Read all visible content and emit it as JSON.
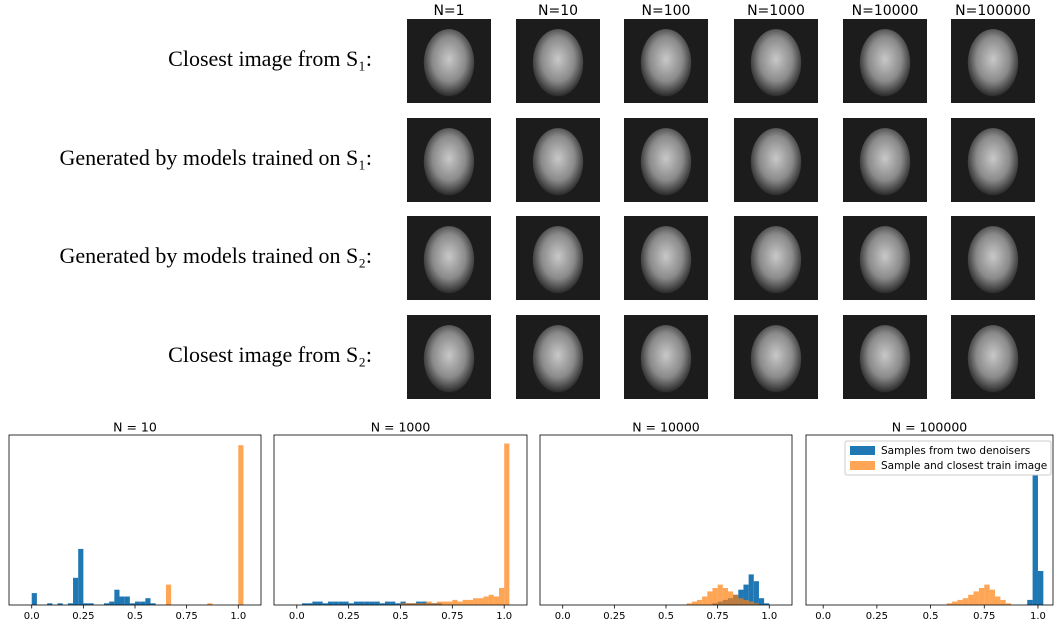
{
  "figure": {
    "columns": [
      "N=1",
      "N=10",
      "N=100",
      "N=1000",
      "N=10000",
      "N=100000"
    ],
    "rows": [
      "Closest image from S₁:",
      "Generated by models trained on S₁:",
      "Generated by models trained on S₂:",
      "Closest image from S₂:"
    ]
  },
  "chart_data": [
    {
      "type": "histogram",
      "title": "N = 10",
      "bins": [
        0,
        0.025,
        0.05,
        0.075,
        0.1,
        0.125,
        0.15,
        0.175,
        0.2,
        0.225,
        0.25,
        0.275,
        0.3,
        0.325,
        0.35,
        0.375,
        0.4,
        0.425,
        0.45,
        0.475,
        0.5,
        0.525,
        0.55,
        0.575,
        0.6,
        0.625,
        0.65,
        0.675,
        0.7,
        0.725,
        0.75,
        0.775,
        0.8,
        0.825,
        0.85,
        0.875,
        0.9,
        0.925,
        0.95,
        0.975,
        1,
        1.025
      ],
      "series": [
        {
          "color": "#1f77b4",
          "values": [
            7,
            0,
            0,
            1,
            0,
            1,
            0,
            1,
            16,
            33,
            1,
            1,
            0,
            0,
            1,
            2,
            9,
            5,
            5,
            1,
            2,
            2,
            4,
            1,
            0,
            0,
            0,
            0,
            0,
            0,
            0,
            0,
            0,
            0,
            0,
            0,
            0,
            0,
            0,
            0,
            0
          ]
        },
        {
          "color": "#ff7f0e",
          "values": [
            0,
            0,
            0,
            0,
            0,
            0,
            0,
            0,
            0,
            0,
            0,
            0,
            0,
            0,
            0,
            0,
            0,
            0,
            0,
            0,
            0,
            0,
            0,
            0,
            0,
            0,
            12,
            0,
            0,
            0,
            0,
            0,
            0,
            0,
            1,
            0,
            0,
            0,
            0,
            0,
            94
          ]
        }
      ],
      "xlim": [
        -0.11,
        1.11
      ],
      "ylim": [
        0,
        100
      ],
      "xticks": [
        {
          "value": 0,
          "label": "0.0"
        },
        0.25,
        0.5,
        0.75,
        {
          "value": 1,
          "label": "1.0"
        }
      ]
    },
    {
      "type": "histogram",
      "title": "N = 1000",
      "bins": [
        0,
        0.025,
        0.05,
        0.075,
        0.1,
        0.125,
        0.15,
        0.175,
        0.2,
        0.225,
        0.25,
        0.275,
        0.3,
        0.325,
        0.35,
        0.375,
        0.4,
        0.425,
        0.45,
        0.475,
        0.5,
        0.525,
        0.55,
        0.575,
        0.6,
        0.625,
        0.65,
        0.675,
        0.7,
        0.725,
        0.75,
        0.775,
        0.8,
        0.825,
        0.85,
        0.875,
        0.9,
        0.925,
        0.95,
        0.975,
        1,
        1.025
      ],
      "series": [
        {
          "color": "#1f77b4",
          "values": [
            0,
            1,
            1,
            2,
            2,
            1,
            2,
            2,
            2,
            2,
            1,
            2,
            2,
            2,
            2,
            2,
            1,
            2,
            2,
            1,
            2,
            1,
            1,
            2,
            2,
            1,
            1,
            1,
            0,
            0,
            0,
            0,
            0,
            0,
            0,
            0,
            0,
            0,
            0,
            0,
            0
          ]
        },
        {
          "color": "#ff7f0e",
          "values": [
            0,
            0,
            0,
            0,
            0,
            0,
            0,
            0,
            0,
            0,
            0,
            0,
            0,
            0,
            0,
            0,
            0,
            0,
            0,
            0,
            1,
            1,
            1,
            1,
            1,
            2,
            1,
            2,
            2,
            2,
            3,
            2,
            3,
            3,
            4,
            4,
            5,
            6,
            5,
            10,
            95
          ]
        }
      ],
      "xlim": [
        -0.11,
        1.11
      ],
      "ylim": [
        0,
        100
      ],
      "xticks": [
        {
          "value": 0,
          "label": "0.0"
        },
        0.25,
        0.5,
        0.75,
        {
          "value": 1,
          "label": "1.0"
        }
      ]
    },
    {
      "type": "histogram",
      "title": "N = 10000",
      "bins": [
        0,
        0.025,
        0.05,
        0.075,
        0.1,
        0.125,
        0.15,
        0.175,
        0.2,
        0.225,
        0.25,
        0.275,
        0.3,
        0.325,
        0.35,
        0.375,
        0.4,
        0.425,
        0.45,
        0.475,
        0.5,
        0.525,
        0.55,
        0.575,
        0.6,
        0.625,
        0.65,
        0.675,
        0.7,
        0.725,
        0.75,
        0.775,
        0.8,
        0.825,
        0.85,
        0.875,
        0.9,
        0.925,
        0.95,
        0.975,
        1,
        1.025
      ],
      "series": [
        {
          "color": "#1f77b4",
          "values": [
            0,
            0,
            0,
            0,
            0,
            0,
            0,
            0,
            0,
            0,
            0,
            0,
            0,
            0,
            0,
            0,
            0,
            0,
            0,
            0,
            0,
            0,
            0,
            0,
            0,
            0,
            0,
            0,
            0,
            1,
            2,
            3,
            4,
            6,
            9,
            12,
            18,
            14,
            4,
            1,
            0
          ]
        },
        {
          "color": "#ff7f0e",
          "values": [
            0,
            0,
            0,
            0,
            0,
            0,
            0,
            0,
            0,
            0,
            0,
            0,
            0,
            0,
            0,
            0,
            0,
            0,
            0,
            0,
            0,
            0,
            0,
            0,
            1,
            2,
            3,
            5,
            8,
            10,
            12,
            10,
            8,
            6,
            4,
            3,
            2,
            1,
            0,
            0,
            0
          ]
        }
      ],
      "xlim": [
        -0.11,
        1.11
      ],
      "ylim": [
        0,
        100
      ],
      "xticks": [
        {
          "value": 0,
          "label": "0.0"
        },
        0.25,
        0.5,
        0.75,
        {
          "value": 1,
          "label": "1.0"
        }
      ]
    },
    {
      "type": "histogram",
      "title": "N = 100000",
      "bins": [
        0,
        0.025,
        0.05,
        0.075,
        0.1,
        0.125,
        0.15,
        0.175,
        0.2,
        0.225,
        0.25,
        0.275,
        0.3,
        0.325,
        0.35,
        0.375,
        0.4,
        0.425,
        0.45,
        0.475,
        0.5,
        0.525,
        0.55,
        0.575,
        0.6,
        0.625,
        0.65,
        0.675,
        0.7,
        0.725,
        0.75,
        0.775,
        0.8,
        0.825,
        0.85,
        0.875,
        0.9,
        0.925,
        0.95,
        0.975,
        1,
        1.025
      ],
      "series": [
        {
          "name": "Samples from two denoisers",
          "color": "#1f77b4",
          "values": [
            0,
            0,
            0,
            0,
            0,
            0,
            0,
            0,
            0,
            0,
            0,
            0,
            0,
            0,
            0,
            0,
            0,
            0,
            0,
            0,
            0,
            0,
            0,
            0,
            0,
            0,
            0,
            0,
            0,
            0,
            0,
            0,
            0,
            0,
            0,
            0,
            0,
            0,
            3,
            95,
            20
          ]
        },
        {
          "name": "Sample and closest train image",
          "color": "#ff7f0e",
          "values": [
            0,
            0,
            0,
            0,
            0,
            0,
            0,
            0,
            0,
            0,
            0,
            0,
            0,
            0,
            0,
            0,
            0,
            0,
            0,
            0,
            0,
            0,
            0,
            1,
            2,
            3,
            4,
            6,
            8,
            10,
            12,
            9,
            5,
            3,
            1,
            0,
            0,
            0,
            0,
            0,
            0
          ]
        }
      ],
      "xlim": [
        -0.08,
        1.07
      ],
      "ylim": [
        0,
        100
      ],
      "legend": "upper right",
      "xticks": [
        {
          "value": 0,
          "label": "0.0"
        },
        0.25,
        0.5,
        0.75,
        {
          "value": 1,
          "label": "1.0"
        }
      ]
    }
  ]
}
